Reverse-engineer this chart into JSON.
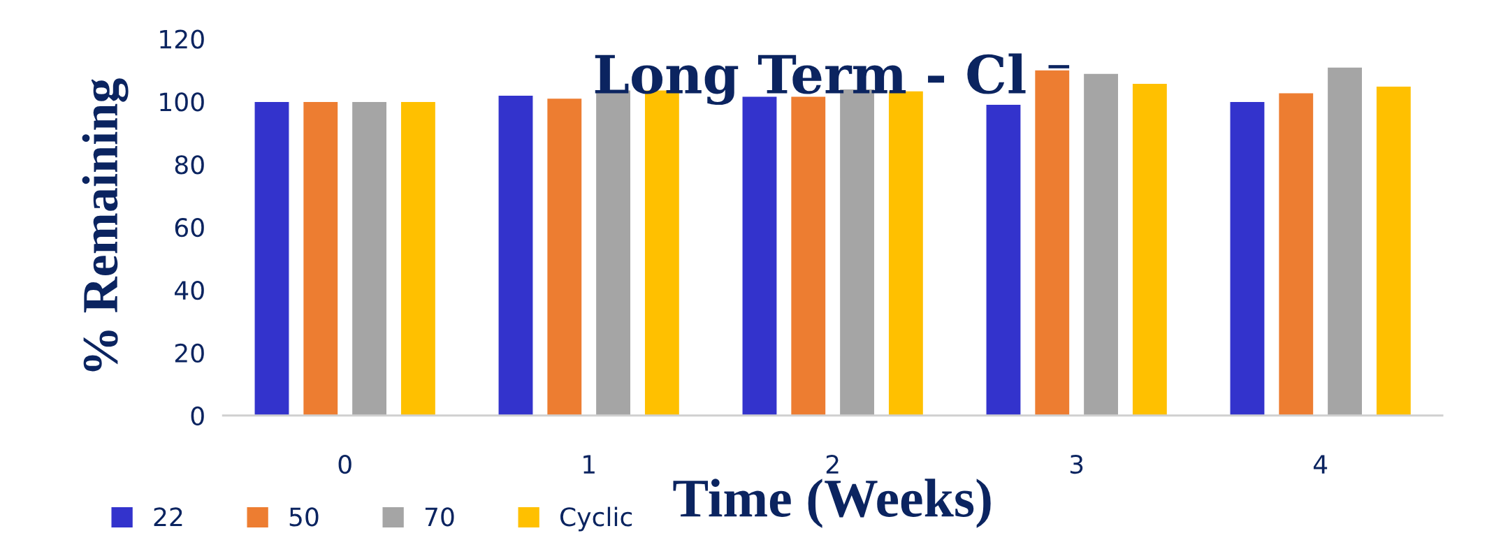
{
  "chart_data": {
    "type": "bar",
    "title": "Long Term - Cl ⁻",
    "xlabel": "Time (Weeks)",
    "ylabel": "% Remaining",
    "categories": [
      "0",
      "1",
      "2",
      "3",
      "4"
    ],
    "series": [
      {
        "name": "22",
        "color": "#3333cc",
        "values": [
          100,
          102,
          101.7,
          99.1,
          100
        ]
      },
      {
        "name": "50",
        "color": "#ed7d31",
        "values": [
          100,
          101.1,
          101.7,
          110.1,
          102.8
        ]
      },
      {
        "name": "70",
        "color": "#a5a5a5",
        "values": [
          100,
          103.7,
          104,
          109,
          111
        ]
      },
      {
        "name": "Cyclic",
        "color": "#ffc000",
        "values": [
          100,
          103.7,
          103.4,
          105.8,
          104.9
        ]
      }
    ],
    "ylim": [
      0,
      120
    ],
    "yticks": [
      0,
      20,
      40,
      60,
      80,
      100,
      120
    ],
    "grid": false,
    "legend": "bottom left"
  }
}
